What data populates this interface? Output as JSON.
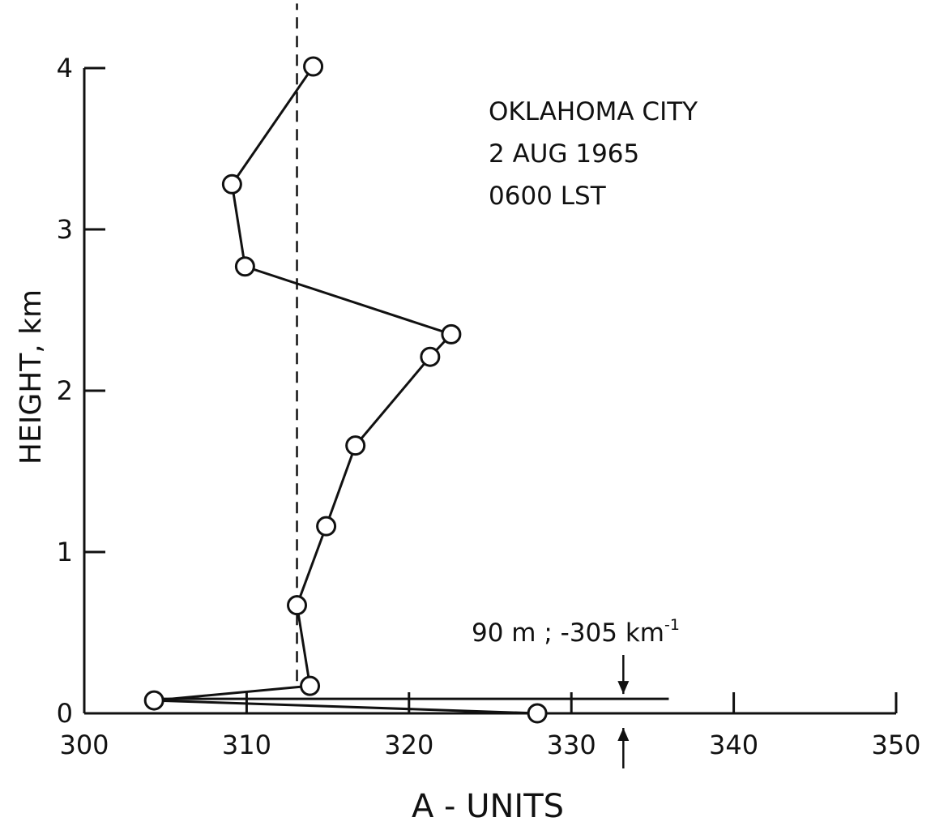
{
  "chart_data": {
    "type": "line",
    "title": "",
    "annotation_lines": [
      "OKLAHOMA CITY",
      "2 AUG 1965",
      "0600 LST"
    ],
    "xlabel": "A - UNITS",
    "ylabel": "HEIGHT, km",
    "xlim": [
      300,
      350
    ],
    "ylim": [
      0,
      4
    ],
    "x_ticks": [
      300,
      310,
      320,
      330,
      340,
      350
    ],
    "y_ticks": [
      0,
      1,
      2,
      3,
      4
    ],
    "grid": false,
    "series": [
      {
        "points": [
          {
            "x": 327.9,
            "y": 0.0
          },
          {
            "x": 304.3,
            "y": 0.08
          },
          {
            "x": 313.9,
            "y": 0.17
          },
          {
            "x": 313.1,
            "y": 0.67
          },
          {
            "x": 314.9,
            "y": 1.16
          },
          {
            "x": 316.7,
            "y": 1.66
          },
          {
            "x": 321.3,
            "y": 2.21
          },
          {
            "x": 322.6,
            "y": 2.35
          },
          {
            "x": 309.9,
            "y": 2.77
          },
          {
            "x": 309.1,
            "y": 3.28
          },
          {
            "x": 314.1,
            "y": 4.01
          }
        ]
      }
    ],
    "reference_line": {
      "x": 313.1,
      "style": "dashed",
      "y_range": [
        0.2,
        4.4
      ]
    },
    "inversion_annotation": {
      "label": "90 m ;  -305 km",
      "label_superscript": "-1",
      "height_km": 0.09,
      "x_range": [
        304.3,
        336.0
      ],
      "arrow_x": 333.2
    }
  }
}
